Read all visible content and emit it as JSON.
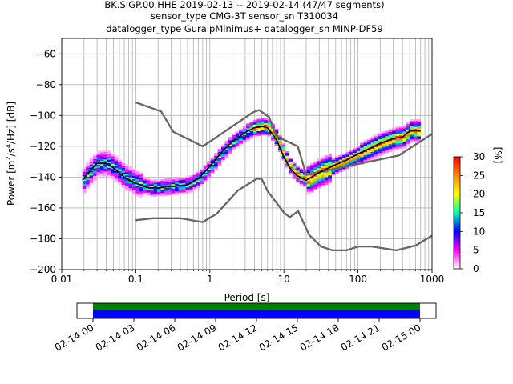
{
  "chart_data": {
    "type": "heatmap",
    "title_lines": [
      "BK.SIGP.00.HHE   2019-02-13 -- 2019-02-14  (47/47 segments)",
      "sensor_type CMG-3T sensor_sn T310034",
      "datalogger_type GuralpMinimus+ datalogger_sn MINP-DF59"
    ],
    "xlabel": "Period [s]",
    "ylabel_parts": {
      "pre": "Power [m",
      "sup1": "2",
      "mid": "/s",
      "sup2": "4",
      "post": "/Hz] [dB]"
    },
    "xscale": "log",
    "xlim": [
      0.01,
      1000
    ],
    "ylim": [
      -200,
      -50
    ],
    "x_ticks": [
      {
        "v": 0.01,
        "label": "0.01"
      },
      {
        "v": 0.1,
        "label": "0.1"
      },
      {
        "v": 1,
        "label": "1"
      },
      {
        "v": 10,
        "label": "10"
      },
      {
        "v": 100,
        "label": "100"
      },
      {
        "v": 1000,
        "label": "1000"
      }
    ],
    "y_ticks": [
      {
        "v": -60,
        "label": "−60"
      },
      {
        "v": -80,
        "label": "−80"
      },
      {
        "v": -100,
        "label": "−100"
      },
      {
        "v": -120,
        "label": "−120"
      },
      {
        "v": -140,
        "label": "−140"
      },
      {
        "v": -160,
        "label": "−160"
      },
      {
        "v": -180,
        "label": "−180"
      },
      {
        "v": -200,
        "label": "−200"
      }
    ],
    "grid": true,
    "colorbar": {
      "label": "[%]",
      "range": [
        0,
        30
      ],
      "ticks": [
        {
          "v": 0,
          "label": "0"
        },
        {
          "v": 5,
          "label": "5"
        },
        {
          "v": 10,
          "label": "10"
        },
        {
          "v": 15,
          "label": "15"
        },
        {
          "v": 20,
          "label": "20"
        },
        {
          "v": 25,
          "label": "25"
        },
        {
          "v": 30,
          "label": "30"
        }
      ],
      "colors": [
        "#ffffff",
        "#ff00ff",
        "#0000ff",
        "#00ffb0",
        "#ffff00",
        "#ff8800",
        "#ff0000"
      ]
    },
    "mean_curve": [
      [
        0.019,
        -142
      ],
      [
        0.025,
        -135
      ],
      [
        0.03,
        -131
      ],
      [
        0.04,
        -131
      ],
      [
        0.05,
        -134
      ],
      [
        0.07,
        -140
      ],
      [
        0.1,
        -144
      ],
      [
        0.15,
        -147
      ],
      [
        0.2,
        -147
      ],
      [
        0.3,
        -146
      ],
      [
        0.5,
        -145
      ],
      [
        0.7,
        -141
      ],
      [
        1.0,
        -133
      ],
      [
        1.5,
        -123
      ],
      [
        2.0,
        -117
      ],
      [
        3.0,
        -111
      ],
      [
        4.0,
        -108
      ],
      [
        5.0,
        -107
      ],
      [
        6.0,
        -108
      ],
      [
        7.0,
        -112
      ],
      [
        8.0,
        -116
      ],
      [
        10,
        -127
      ],
      [
        12,
        -134
      ],
      [
        15,
        -139
      ],
      [
        20,
        -142
      ],
      [
        30,
        -137
      ],
      [
        50,
        -132
      ],
      [
        70,
        -129
      ],
      [
        100,
        -125
      ],
      [
        150,
        -121
      ],
      [
        200,
        -118
      ],
      [
        300,
        -115
      ],
      [
        400,
        -114
      ],
      [
        500,
        -110
      ],
      [
        700,
        -110
      ]
    ],
    "nhnm": [
      [
        0.1,
        -91.5
      ],
      [
        0.22,
        -97.4
      ],
      [
        0.32,
        -110.5
      ],
      [
        0.8,
        -120
      ],
      [
        1.0,
        -117
      ],
      [
        3.8,
        -98
      ],
      [
        4.6,
        -96.5
      ],
      [
        6.3,
        -101
      ],
      [
        7.9,
        -113.5
      ],
      [
        15.4,
        -120
      ],
      [
        20,
        -138.5
      ],
      [
        354.8,
        -126
      ],
      [
        1000,
        -112
      ]
    ],
    "nlnm": [
      [
        0.1,
        -168
      ],
      [
        0.17,
        -166.7
      ],
      [
        0.4,
        -166.7
      ],
      [
        0.8,
        -169.2
      ],
      [
        1.24,
        -163.7
      ],
      [
        2.4,
        -148.6
      ],
      [
        4.3,
        -141.1
      ],
      [
        5.0,
        -141.1
      ],
      [
        6.0,
        -149
      ],
      [
        10,
        -163
      ],
      [
        12,
        -166
      ],
      [
        15.6,
        -162
      ],
      [
        21.9,
        -177.5
      ],
      [
        31.6,
        -185
      ],
      [
        45,
        -187.5
      ],
      [
        70,
        -187.5
      ],
      [
        101,
        -185
      ],
      [
        154,
        -185
      ],
      [
        328,
        -187.5
      ],
      [
        600,
        -184.4
      ],
      [
        1000,
        -178
      ]
    ],
    "timeline": {
      "tick_labels": [
        "02-14 00",
        "02-14 03",
        "02-14 06",
        "02-14 09",
        "02-14 12",
        "02-14 15",
        "02-14 18",
        "02-14 21",
        "02-15 00"
      ],
      "bar_colors": {
        "data": "#0000ff",
        "used": "#008000"
      }
    }
  }
}
